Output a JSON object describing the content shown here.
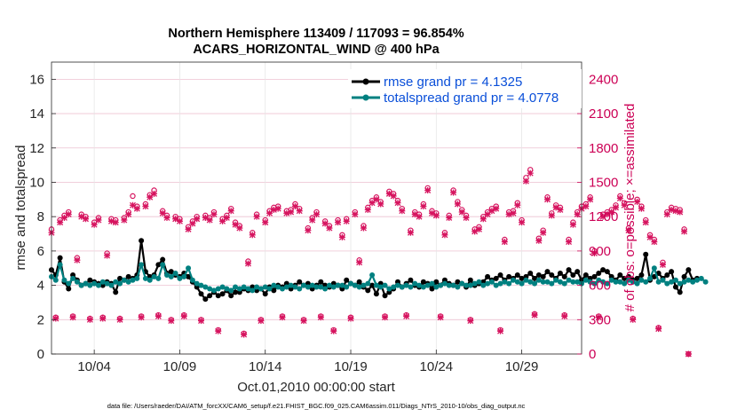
{
  "chart_data": {
    "type": "line",
    "title_line1": "Northern Hemisphere 113409 / 117093 = 96.854%",
    "title_line2": "ACARS_HORIZONTAL_WIND @ 400 hPa",
    "ylabel": "rmse and totalspread",
    "ylabel_right": "# of obs: o=possible; ×=assimilated",
    "xlabel": "Oct.01,2010 00:00:00 start",
    "footer": "data file: /Users/raeder/DAI/ATM_forcXX/CAM6_setup/f.e21.FHIST_BGC.f09_025.CAM6assim.011/Diags_NTrS_2010-10/obs_diag_output.nc",
    "ylim": [
      0,
      17
    ],
    "ylim_right": [
      0,
      2550
    ],
    "xlim": [
      1.5,
      32.5
    ],
    "yticks": [
      "0",
      "2",
      "4",
      "6",
      "8",
      "10",
      "12",
      "14",
      "16"
    ],
    "yticks_right": [
      "0",
      "300",
      "600",
      "900",
      "1200",
      "1500",
      "1800",
      "2100",
      "2400"
    ],
    "xticks": [
      {
        "x": 4,
        "label": "10/04"
      },
      {
        "x": 9,
        "label": "10/09"
      },
      {
        "x": 14,
        "label": "10/14"
      },
      {
        "x": 19,
        "label": "10/19"
      },
      {
        "x": 24,
        "label": "10/24"
      },
      {
        "x": 29,
        "label": "10/29"
      }
    ],
    "series": [
      {
        "name": "rmse",
        "legend": "rmse grand pr = 4.1325",
        "color": "#000000",
        "x_start": 1.5,
        "x_step": 0.25,
        "values": [
          4.9,
          4.6,
          5.6,
          4.2,
          3.8,
          4.6,
          4.3,
          4.0,
          4.1,
          4.3,
          4.2,
          4.1,
          4.0,
          4.2,
          4.1,
          3.6,
          4.4,
          4.3,
          4.5,
          4.4,
          4.6,
          6.6,
          4.8,
          4.5,
          4.6,
          5.2,
          5.5,
          4.7,
          4.8,
          4.6,
          4.5,
          4.7,
          4.5,
          4.2,
          3.9,
          3.5,
          3.2,
          3.4,
          3.6,
          3.4,
          3.5,
          3.7,
          3.4,
          3.6,
          3.6,
          3.8,
          3.7,
          3.9,
          3.7,
          3.8,
          3.5,
          3.9,
          3.7,
          4.0,
          3.9,
          4.1,
          3.8,
          4.0,
          4.2,
          4.0,
          4.1,
          3.8,
          4.0,
          4.2,
          4.0,
          3.9,
          4.1,
          4.0,
          3.8,
          4.3,
          4.1,
          4.0,
          4.2,
          3.9,
          3.7,
          4.0,
          3.5,
          4.1,
          3.4,
          3.6,
          3.8,
          4.2,
          3.9,
          4.1,
          4.3,
          4.0,
          3.9,
          4.2,
          4.1,
          3.8,
          4.2,
          4.0,
          4.3,
          4.1,
          4.0,
          4.2,
          4.1,
          3.9,
          4.3,
          4.0,
          4.1,
          4.2,
          4.5,
          4.3,
          4.4,
          4.6,
          4.3,
          4.5,
          4.4,
          4.6,
          4.4,
          4.5,
          4.7,
          4.4,
          4.6,
          4.5,
          4.8,
          4.6,
          4.4,
          4.7,
          4.5,
          4.9,
          4.6,
          4.8,
          4.3,
          4.6,
          4.4,
          4.5,
          4.7,
          4.9,
          4.8,
          4.5,
          4.3,
          4.6,
          4.4,
          4.5,
          4.3,
          4.4,
          4.6,
          5.8,
          4.3,
          4.5,
          4.7,
          4.4,
          4.6,
          4.8,
          3.9,
          3.6,
          4.5,
          4.9,
          4.3,
          4.4
        ],
        "markers": "filled-circle"
      },
      {
        "name": "totalspread",
        "legend": "totalspread grand pr = 4.0778",
        "color": "#008080",
        "x_start": 1.5,
        "x_step": 0.25,
        "values": [
          4.5,
          4.3,
          5.2,
          4.3,
          4.1,
          4.4,
          4.2,
          4.0,
          4.1,
          4.0,
          4.1,
          4.0,
          4.2,
          4.1,
          4.0,
          4.2,
          4.1,
          4.3,
          4.2,
          4.3,
          4.4,
          5.2,
          4.4,
          4.3,
          4.5,
          4.4,
          5.2,
          4.6,
          4.5,
          4.7,
          4.4,
          4.5,
          5.0,
          4.3,
          4.1,
          4.0,
          3.9,
          3.8,
          3.7,
          3.8,
          3.9,
          3.8,
          3.7,
          3.9,
          3.8,
          3.9,
          3.8,
          3.7,
          3.9,
          3.8,
          3.9,
          3.8,
          4.0,
          3.9,
          3.8,
          3.9,
          4.0,
          3.9,
          3.8,
          4.0,
          3.9,
          4.0,
          3.9,
          3.9,
          3.8,
          4.0,
          3.9,
          4.0,
          4.0,
          3.9,
          4.1,
          4.0,
          3.9,
          4.0,
          4.1,
          4.6,
          4.0,
          3.9,
          4.0,
          3.8,
          3.9,
          4.0,
          3.9,
          4.0,
          3.9,
          4.1,
          4.0,
          3.9,
          4.0,
          4.1,
          3.9,
          4.0,
          4.1,
          4.0,
          4.0,
          3.9,
          4.1,
          4.0,
          4.0,
          4.1,
          4.2,
          4.0,
          4.1,
          4.2,
          4.0,
          4.1,
          4.2,
          4.1,
          4.3,
          4.2,
          4.1,
          4.3,
          4.2,
          4.1,
          4.3,
          4.2,
          4.2,
          4.1,
          4.3,
          4.2,
          4.1,
          4.3,
          4.2,
          4.2,
          4.1,
          4.3,
          4.2,
          4.1,
          4.3,
          4.2,
          4.1,
          4.3,
          4.2,
          4.2,
          4.1,
          4.3,
          4.2,
          4.1,
          4.3,
          4.2,
          4.4,
          5.0,
          4.2,
          4.3,
          4.1,
          4.2,
          4.3,
          4.1,
          4.2,
          4.3,
          4.2,
          4.3,
          4.4,
          4.2
        ],
        "markers": "filled-circle"
      }
    ],
    "obs_counts": {
      "x_start": 1.5,
      "x_step": 0.25,
      "possible": [
        1090,
        320,
        1170,
        1210,
        1240,
        330,
        840,
        1220,
        1200,
        310,
        1150,
        1190,
        320,
        880,
        1180,
        1170,
        310,
        1190,
        1240,
        1380,
        1290,
        330,
        1310,
        1390,
        1430,
        340,
        1250,
        1210,
        300,
        1200,
        1180,
        340,
        1110,
        1160,
        1200,
        300,
        1210,
        1190,
        1240,
        210,
        1180,
        1210,
        1270,
        1150,
        1120,
        180,
        810,
        1060,
        1220,
        300,
        1170,
        1250,
        1280,
        1290,
        330,
        1250,
        1260,
        1310,
        1270,
        300,
        1100,
        1190,
        1240,
        330,
        1160,
        1120,
        210,
        1170,
        1040,
        1180,
        320,
        1240,
        820,
        1120,
        1280,
        1340,
        1370,
        1330,
        330,
        1420,
        1400,
        1340,
        1270,
        340,
        1080,
        1240,
        1220,
        1310,
        1450,
        1250,
        1230,
        330,
        1060,
        1210,
        1430,
        1330,
        1260,
        1210,
        300,
        1090,
        1110,
        1200,
        1240,
        1270,
        1290,
        210,
        1000,
        1240,
        1250,
        1320,
        1170,
        1540,
        1610,
        350,
        1010,
        1080,
        1370,
        1230,
        1300,
        1280,
        340,
        1000,
        1150,
        1240,
        1290,
        1310,
        1370,
        900,
        330,
        1220,
        1240,
        1260,
        1300,
        1380,
        1320,
        1100,
        310,
        1350,
        1290,
        1170,
        1040,
        1000,
        230,
        800,
        1240,
        1280,
        1270,
        1260,
        1090,
        0
      ],
      "assimilated": [
        1060,
        310,
        1150,
        1190,
        1220,
        320,
        820,
        1200,
        1180,
        300,
        1130,
        1170,
        310,
        860,
        1160,
        1150,
        300,
        1170,
        1220,
        1300,
        1270,
        320,
        1290,
        1370,
        1400,
        330,
        1230,
        1190,
        290,
        1180,
        1160,
        330,
        1090,
        1140,
        1180,
        290,
        1190,
        1170,
        1220,
        200,
        1160,
        1190,
        1250,
        1130,
        1100,
        170,
        790,
        1040,
        1200,
        290,
        1150,
        1230,
        1260,
        1270,
        320,
        1230,
        1240,
        1290,
        1250,
        290,
        1080,
        1170,
        1220,
        320,
        1140,
        1100,
        200,
        1150,
        1020,
        1160,
        310,
        1220,
        800,
        1100,
        1260,
        1320,
        1350,
        1310,
        320,
        1400,
        1380,
        1320,
        1250,
        330,
        1060,
        1220,
        1200,
        1290,
        1430,
        1230,
        1210,
        320,
        1040,
        1190,
        1410,
        1310,
        1240,
        1190,
        290,
        1070,
        1090,
        1180,
        1220,
        1250,
        1270,
        200,
        980,
        1220,
        1230,
        1300,
        1150,
        1510,
        1580,
        340,
        990,
        1060,
        1350,
        1210,
        1280,
        1260,
        330,
        980,
        1130,
        1220,
        1270,
        1290,
        1350,
        880,
        320,
        1200,
        1220,
        1240,
        1280,
        1360,
        1300,
        1080,
        300,
        1330,
        1270,
        1150,
        1020,
        980,
        220,
        780,
        1220,
        1260,
        1250,
        1240,
        1070,
        0
      ]
    }
  }
}
